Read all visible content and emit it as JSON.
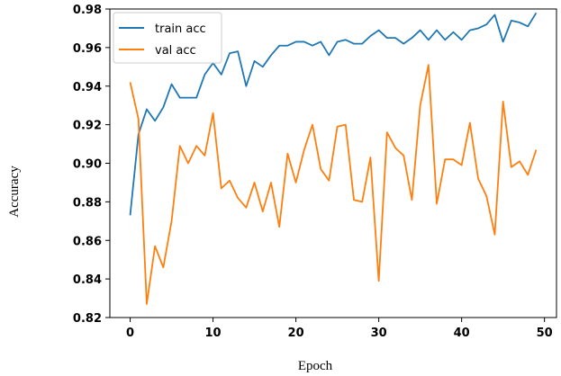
{
  "chart_data": {
    "type": "line",
    "xlabel": "Epoch",
    "ylabel": "Accuracy",
    "xlim": [
      -2.45,
      51.45
    ],
    "ylim": [
      0.82,
      0.98
    ],
    "xticks": [
      0,
      10,
      20,
      30,
      40,
      50
    ],
    "yticks": [
      0.82,
      0.84,
      0.86,
      0.88,
      0.9,
      0.92,
      0.94,
      0.96,
      0.98
    ],
    "xtick_labels": [
      "0",
      "10",
      "20",
      "30",
      "40",
      "50"
    ],
    "ytick_labels": [
      "0.82",
      "0.84",
      "0.86",
      "0.88",
      "0.90",
      "0.92",
      "0.94",
      "0.96",
      "0.98"
    ],
    "grid": false,
    "legend_position": "top-left",
    "x": [
      0,
      1,
      2,
      3,
      4,
      5,
      6,
      7,
      8,
      9,
      10,
      11,
      12,
      13,
      14,
      15,
      16,
      17,
      18,
      19,
      20,
      21,
      22,
      23,
      24,
      25,
      26,
      27,
      28,
      29,
      30,
      31,
      32,
      33,
      34,
      35,
      36,
      37,
      38,
      39,
      40,
      41,
      42,
      43,
      44,
      45,
      46,
      47,
      48,
      49
    ],
    "series": [
      {
        "name": "train acc",
        "color": "#1f77b4",
        "values": [
          0.873,
          0.915,
          0.928,
          0.922,
          0.929,
          0.941,
          0.934,
          0.934,
          0.934,
          0.946,
          0.952,
          0.946,
          0.957,
          0.958,
          0.94,
          0.953,
          0.95,
          0.956,
          0.961,
          0.961,
          0.963,
          0.963,
          0.961,
          0.963,
          0.956,
          0.963,
          0.964,
          0.962,
          0.962,
          0.966,
          0.969,
          0.965,
          0.965,
          0.962,
          0.965,
          0.969,
          0.964,
          0.969,
          0.964,
          0.968,
          0.964,
          0.969,
          0.97,
          0.972,
          0.977,
          0.963,
          0.974,
          0.973,
          0.971,
          0.978
        ]
      },
      {
        "name": "val acc",
        "color": "#ff7f0e",
        "values": [
          0.942,
          0.923,
          0.827,
          0.857,
          0.846,
          0.87,
          0.909,
          0.9,
          0.909,
          0.904,
          0.926,
          0.887,
          0.891,
          0.882,
          0.877,
          0.89,
          0.875,
          0.89,
          0.867,
          0.905,
          0.89,
          0.907,
          0.92,
          0.897,
          0.891,
          0.919,
          0.92,
          0.881,
          0.88,
          0.903,
          0.839,
          0.916,
          0.908,
          0.904,
          0.881,
          0.93,
          0.951,
          0.879,
          0.902,
          0.902,
          0.899,
          0.921,
          0.892,
          0.883,
          0.863,
          0.932,
          0.898,
          0.901,
          0.894,
          0.907
        ]
      }
    ]
  }
}
